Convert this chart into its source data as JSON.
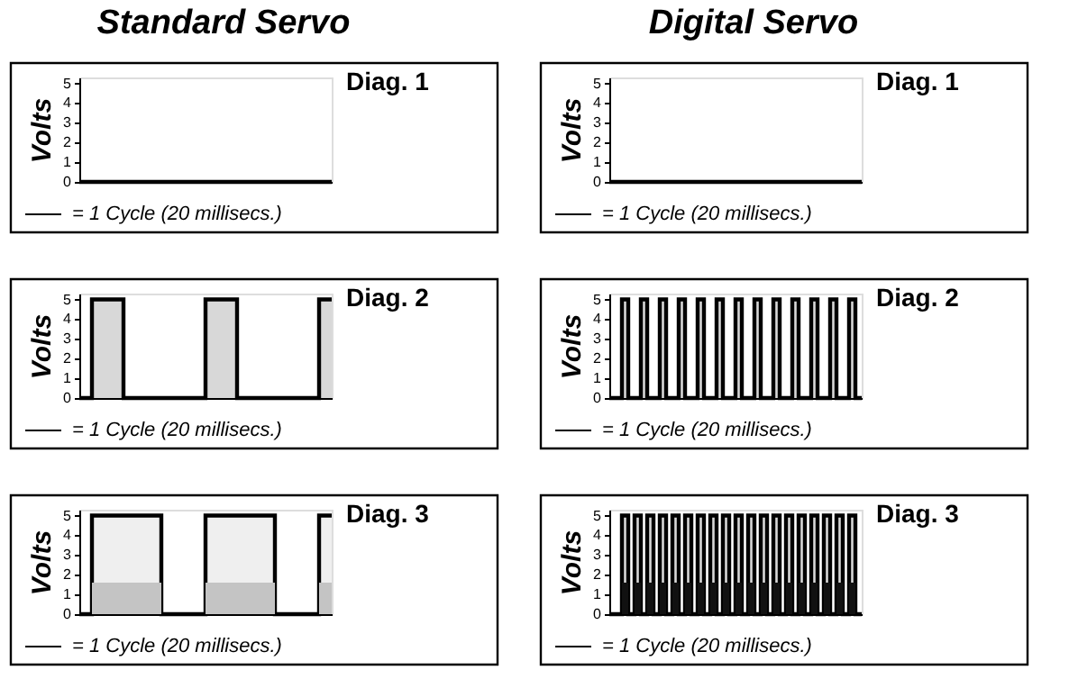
{
  "chart_data": [
    {
      "type": "step",
      "title": "Standard Servo",
      "ylabel": "Volts",
      "categories": [
        null,
        null,
        null,
        null,
        null,
        null,
        null,
        null,
        null,
        null,
        null,
        null,
        null,
        null,
        null,
        null,
        null,
        null,
        null,
        null,
        null,
        null,
        null,
        null,
        null,
        null,
        null,
        null,
        null,
        null,
        null,
        null,
        null,
        null,
        null,
        null,
        null,
        null,
        null,
        null,
        null
      ],
      "ylim": [
        0,
        5.3
      ],
      "yticks": [
        0,
        1,
        2,
        3,
        4,
        5
      ],
      "tick_labels": "y",
      "annotations": [
        "Diag. 1",
        "= 1 Cycle (20 millisecs.)"
      ],
      "series": [
        {
          "color": "#000000",
          "values": [
            0,
            0,
            0,
            0,
            0,
            0,
            0,
            0,
            0,
            0,
            0,
            0,
            0,
            0,
            0,
            0,
            0,
            0,
            0,
            0,
            0,
            0,
            0,
            0,
            0,
            0,
            0,
            0,
            0,
            0,
            0,
            0,
            0,
            0,
            0,
            0,
            0,
            0,
            0,
            0,
            0
          ]
        }
      ]
    },
    {
      "type": "step",
      "title": "Digital Servo",
      "ylabel": "Volts",
      "categories": [
        null,
        null,
        null,
        null,
        null,
        null,
        null,
        null,
        null,
        null,
        null,
        null,
        null,
        null,
        null,
        null,
        null,
        null,
        null,
        null,
        null,
        null,
        null,
        null,
        null,
        null,
        null,
        null,
        null,
        null,
        null,
        null,
        null,
        null,
        null,
        null,
        null,
        null,
        null,
        null,
        null
      ],
      "ylim": [
        0,
        5.3
      ],
      "yticks": [
        0,
        1,
        2,
        3,
        4,
        5
      ],
      "tick_labels": "y",
      "annotations": [
        "Diag. 1",
        "= 1 Cycle (20 millisecs.)"
      ],
      "series": [
        {
          "color": "#000000",
          "values": [
            0,
            0,
            0,
            0,
            0,
            0,
            0,
            0,
            0,
            0,
            0,
            0,
            0,
            0,
            0,
            0,
            0,
            0,
            0,
            0,
            0,
            0,
            0,
            0,
            0,
            0,
            0,
            0,
            0,
            0,
            0,
            0,
            0,
            0,
            0,
            0,
            0,
            0,
            0,
            0,
            0
          ]
        }
      ]
    },
    {
      "type": "step",
      "ylabel": "Volts",
      "categories": [
        null,
        null,
        null,
        null,
        null,
        null,
        null,
        null,
        null,
        null,
        null,
        null,
        null,
        null,
        null,
        null,
        null,
        null,
        null,
        null,
        null,
        null,
        null,
        null,
        null,
        null,
        null,
        null,
        null,
        null,
        null,
        null,
        null,
        null,
        null,
        null,
        null,
        null,
        null,
        null,
        null
      ],
      "ylim": [
        0,
        5.3
      ],
      "yticks": [
        0,
        1,
        2,
        3,
        4,
        5
      ],
      "tick_labels": "y",
      "annotations": [
        "Diag. 2",
        "= 1 Cycle (20 millisecs.)"
      ],
      "series": [
        {
          "type": "area",
          "color": "#c8c8c8",
          "values": [
            0,
            0,
            5,
            5,
            5,
            5,
            5,
            0,
            0,
            0,
            0,
            0,
            0,
            0,
            0,
            0,
            0,
            0,
            0,
            0,
            5,
            5,
            5,
            5,
            5,
            0,
            0,
            0,
            0,
            0,
            0,
            0,
            0,
            0,
            0,
            0,
            0,
            0,
            5,
            5,
            5
          ]
        }
      ]
    },
    {
      "type": "step",
      "ylabel": "Volts",
      "categories": [
        null,
        null,
        null,
        null,
        null,
        null,
        null,
        null,
        null,
        null,
        null,
        null,
        null,
        null,
        null,
        null,
        null,
        null,
        null,
        null,
        null,
        null,
        null,
        null,
        null,
        null,
        null,
        null,
        null,
        null,
        null,
        null,
        null,
        null,
        null,
        null,
        null,
        null,
        null,
        null,
        null
      ],
      "ylim": [
        0,
        5.3
      ],
      "yticks": [
        0,
        1,
        2,
        3,
        4,
        5
      ],
      "tick_labels": "y",
      "annotations": [
        "Diag. 2",
        "= 1 Cycle (20 millisecs.)"
      ],
      "series": [
        {
          "type": "area",
          "color": "#c8c8c8",
          "values": [
            0,
            0,
            5,
            0,
            0,
            5,
            0,
            0,
            5,
            0,
            0,
            5,
            0,
            0,
            5,
            0,
            0,
            5,
            0,
            0,
            5,
            0,
            0,
            5,
            0,
            0,
            5,
            0,
            0,
            5,
            0,
            0,
            5,
            0,
            0,
            5,
            0,
            0,
            5,
            0,
            0
          ]
        }
      ]
    },
    {
      "type": "step",
      "ylabel": "Volts",
      "categories": [
        null,
        null,
        null,
        null,
        null,
        null,
        null,
        null,
        null,
        null,
        null,
        null,
        null,
        null,
        null,
        null,
        null,
        null,
        null,
        null,
        null,
        null,
        null,
        null,
        null,
        null,
        null,
        null,
        null,
        null,
        null,
        null,
        null,
        null,
        null,
        null,
        null,
        null,
        null,
        null,
        null
      ],
      "ylim": [
        0,
        5.3
      ],
      "yticks": [
        0,
        1,
        2,
        3,
        4,
        5
      ],
      "tick_labels": "y",
      "annotations": [
        "Diag. 3",
        "= 1 Cycle (20 millisecs.)"
      ],
      "series": [
        {
          "type": "area",
          "color": "#e8e8e8",
          "values": [
            0,
            0,
            5,
            5,
            5,
            5,
            5,
            5,
            5,
            5,
            5,
            5,
            5,
            0,
            0,
            0,
            0,
            0,
            0,
            0,
            5,
            5,
            5,
            5,
            5,
            5,
            5,
            5,
            5,
            5,
            5,
            0,
            0,
            0,
            0,
            0,
            0,
            0,
            5,
            5,
            5
          ]
        },
        {
          "type": "area",
          "color": "#c4c4c4",
          "values": [
            0,
            0,
            1.6,
            1.6,
            1.6,
            1.6,
            1.6,
            1.6,
            1.6,
            1.6,
            1.6,
            1.6,
            1.6,
            0,
            0,
            0,
            0,
            0,
            0,
            0,
            1.6,
            1.6,
            1.6,
            1.6,
            1.6,
            1.6,
            1.6,
            1.6,
            1.6,
            1.6,
            1.6,
            0,
            0,
            0,
            0,
            0,
            0,
            0,
            1.6,
            1.6,
            1.6
          ]
        }
      ]
    },
    {
      "type": "step",
      "ylabel": "Volts",
      "categories": [
        null,
        null,
        null,
        null,
        null,
        null,
        null,
        null,
        null,
        null,
        null,
        null,
        null,
        null,
        null,
        null,
        null,
        null,
        null,
        null,
        null,
        null,
        null,
        null,
        null,
        null,
        null,
        null,
        null,
        null,
        null,
        null,
        null,
        null,
        null,
        null,
        null,
        null,
        null,
        null,
        null
      ],
      "ylim": [
        0,
        5.3
      ],
      "yticks": [
        0,
        1,
        2,
        3,
        4,
        5
      ],
      "tick_labels": "y",
      "annotations": [
        "Diag. 3",
        "= 1 Cycle (20 millisecs.)"
      ],
      "series": [
        {
          "type": "area",
          "color": "#c8c8c8",
          "values": [
            0,
            0,
            5,
            0,
            5,
            0,
            5,
            0,
            5,
            0,
            5,
            0,
            5,
            0,
            5,
            0,
            5,
            0,
            5,
            0,
            5,
            0,
            5,
            0,
            5,
            0,
            5,
            0,
            5,
            0,
            5,
            0,
            5,
            0,
            5,
            0,
            5,
            0,
            5,
            0,
            0
          ]
        },
        {
          "type": "area",
          "color": "#111111",
          "values": [
            0,
            0,
            1.6,
            0,
            1.6,
            0,
            1.6,
            0,
            1.6,
            0,
            1.6,
            0,
            1.6,
            0,
            1.6,
            0,
            1.6,
            0,
            1.6,
            0,
            1.6,
            0,
            1.6,
            0,
            1.6,
            0,
            1.6,
            0,
            1.6,
            0,
            1.6,
            0,
            1.6,
            0,
            1.6,
            0,
            1.6,
            0,
            1.6,
            0,
            0
          ]
        }
      ]
    }
  ]
}
